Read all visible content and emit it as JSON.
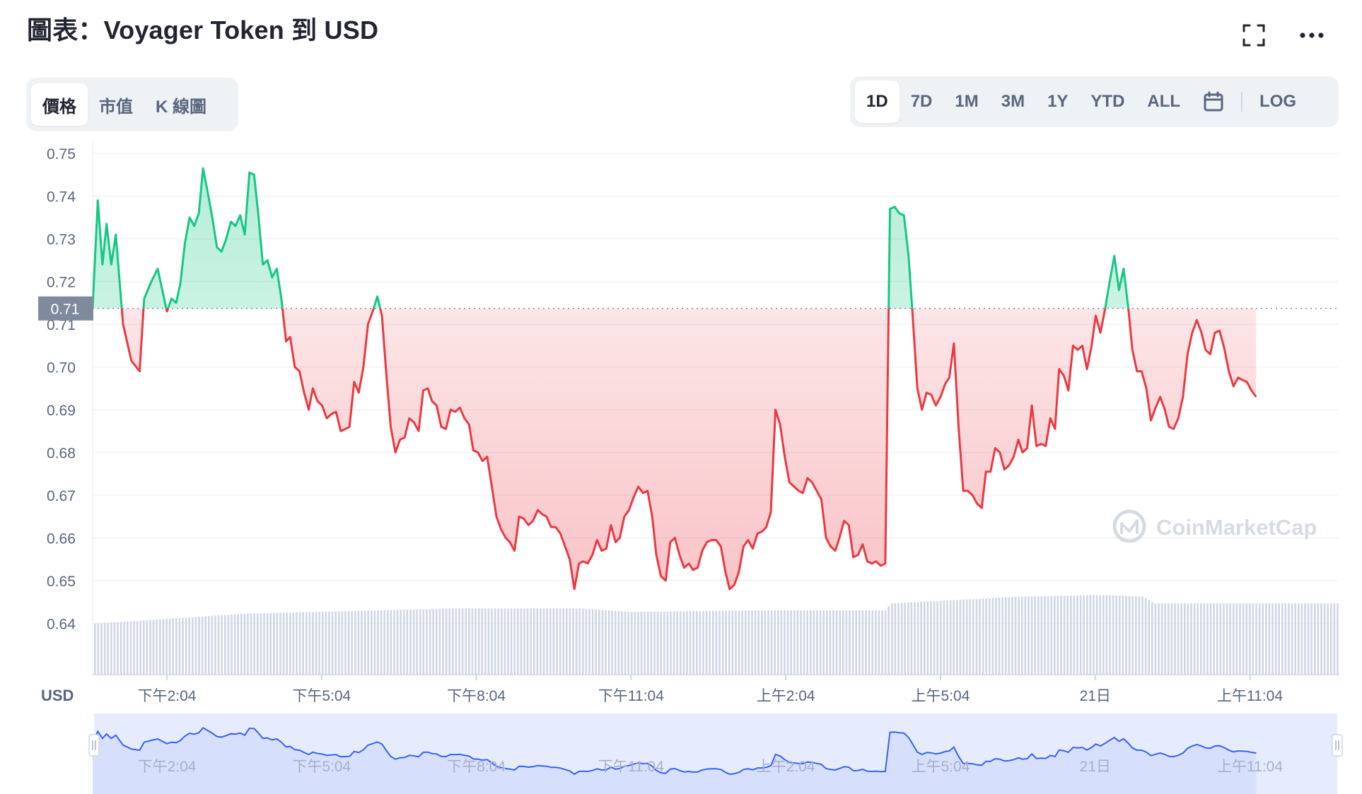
{
  "header": {
    "title": "圖表：Voyager Token 到 USD",
    "icons": [
      "fullscreen-icon",
      "more-options-icon"
    ]
  },
  "view_tabs": [
    {
      "label": "價格",
      "active": true
    },
    {
      "label": "市值",
      "active": false
    },
    {
      "label": "K 線圖",
      "active": false
    }
  ],
  "range_tabs": [
    {
      "label": "1D",
      "active": true
    },
    {
      "label": "7D",
      "active": false
    },
    {
      "label": "1M",
      "active": false
    },
    {
      "label": "3M",
      "active": false
    },
    {
      "label": "1Y",
      "active": false
    },
    {
      "label": "YTD",
      "active": false
    },
    {
      "label": "ALL",
      "active": false
    }
  ],
  "log_label": "LOG",
  "colors": {
    "up": "#16c784",
    "down": "#ea3943",
    "volume": "#cfd6e4",
    "navigator": "#3861fb",
    "baseline_label_bg": "#808a9d"
  },
  "chart_data": {
    "type": "area",
    "currency_label": "USD",
    "baseline": 0.7137,
    "baseline_label": "0.71",
    "ylim": [
      0.628,
      0.752
    ],
    "y_ticks": [
      "0.75",
      "0.74",
      "0.73",
      "0.72",
      "0.71",
      "0.70",
      "0.69",
      "0.68",
      "0.67",
      "0.66",
      "0.65",
      "0.64"
    ],
    "x_ticks": [
      "下午2:04",
      "下午5:04",
      "下午8:04",
      "下午11:04",
      "上午2:04",
      "上午5:04",
      "21日",
      "上午11:04"
    ],
    "x_tick_hours": [
      2.48,
      5.48,
      8.48,
      11.48,
      14.48,
      17.48,
      20.48,
      23.48
    ],
    "xlim_hours": [
      1.04,
      25.2
    ],
    "grid": true,
    "watermark": "CoinMarketCap",
    "series": [
      {
        "points": [
          [
            1.04,
            0.7139
          ],
          [
            1.14,
            0.739
          ],
          [
            1.23,
            0.724
          ],
          [
            1.31,
            0.7335
          ],
          [
            1.4,
            0.724
          ],
          [
            1.49,
            0.731
          ],
          [
            1.63,
            0.71
          ],
          [
            1.79,
            0.7015
          ],
          [
            1.95,
            0.699
          ],
          [
            2.04,
            0.716
          ],
          [
            2.18,
            0.72
          ],
          [
            2.3,
            0.723
          ],
          [
            2.39,
            0.718
          ],
          [
            2.48,
            0.713
          ],
          [
            2.57,
            0.716
          ],
          [
            2.66,
            0.715
          ],
          [
            2.74,
            0.7195
          ],
          [
            2.83,
            0.729
          ],
          [
            2.92,
            0.735
          ],
          [
            3.01,
            0.733
          ],
          [
            3.1,
            0.736
          ],
          [
            3.18,
            0.7465
          ],
          [
            3.27,
            0.741
          ],
          [
            3.36,
            0.735
          ],
          [
            3.45,
            0.728
          ],
          [
            3.54,
            0.727
          ],
          [
            3.63,
            0.73
          ],
          [
            3.72,
            0.734
          ],
          [
            3.81,
            0.733
          ],
          [
            3.9,
            0.7355
          ],
          [
            3.99,
            0.731
          ],
          [
            4.08,
            0.7455
          ],
          [
            4.17,
            0.745
          ],
          [
            4.25,
            0.736
          ],
          [
            4.34,
            0.724
          ],
          [
            4.43,
            0.725
          ],
          [
            4.52,
            0.721
          ],
          [
            4.61,
            0.723
          ],
          [
            4.7,
            0.716
          ],
          [
            4.79,
            0.706
          ],
          [
            4.87,
            0.707
          ],
          [
            4.96,
            0.7
          ],
          [
            5.05,
            0.699
          ],
          [
            5.14,
            0.694
          ],
          [
            5.23,
            0.69
          ],
          [
            5.31,
            0.695
          ],
          [
            5.4,
            0.692
          ],
          [
            5.49,
            0.691
          ],
          [
            5.58,
            0.688
          ],
          [
            5.67,
            0.689
          ],
          [
            5.76,
            0.6895
          ],
          [
            5.85,
            0.685
          ],
          [
            5.94,
            0.6855
          ],
          [
            6.02,
            0.686
          ],
          [
            6.11,
            0.6965
          ],
          [
            6.2,
            0.694
          ],
          [
            6.29,
            0.7
          ],
          [
            6.38,
            0.71
          ],
          [
            6.47,
            0.713
          ],
          [
            6.56,
            0.7165
          ],
          [
            6.65,
            0.712
          ],
          [
            6.73,
            0.699
          ],
          [
            6.82,
            0.686
          ],
          [
            6.91,
            0.68
          ],
          [
            7.0,
            0.683
          ],
          [
            7.09,
            0.6835
          ],
          [
            7.18,
            0.688
          ],
          [
            7.27,
            0.687
          ],
          [
            7.36,
            0.685
          ],
          [
            7.45,
            0.6945
          ],
          [
            7.54,
            0.695
          ],
          [
            7.62,
            0.692
          ],
          [
            7.71,
            0.691
          ],
          [
            7.8,
            0.686
          ],
          [
            7.89,
            0.6855
          ],
          [
            7.98,
            0.69
          ],
          [
            8.07,
            0.6895
          ],
          [
            8.16,
            0.6905
          ],
          [
            8.25,
            0.688
          ],
          [
            8.34,
            0.6865
          ],
          [
            8.42,
            0.6805
          ],
          [
            8.51,
            0.68
          ],
          [
            8.6,
            0.678
          ],
          [
            8.69,
            0.679
          ],
          [
            8.78,
            0.672
          ],
          [
            8.87,
            0.665
          ],
          [
            8.96,
            0.662
          ],
          [
            9.05,
            0.66
          ],
          [
            9.13,
            0.659
          ],
          [
            9.22,
            0.657
          ],
          [
            9.31,
            0.665
          ],
          [
            9.4,
            0.6645
          ],
          [
            9.49,
            0.663
          ],
          [
            9.58,
            0.664
          ],
          [
            9.67,
            0.6665
          ],
          [
            9.76,
            0.6655
          ],
          [
            9.84,
            0.665
          ],
          [
            9.93,
            0.6625
          ],
          [
            10.02,
            0.6625
          ],
          [
            10.11,
            0.661
          ],
          [
            10.2,
            0.658
          ],
          [
            10.29,
            0.655
          ],
          [
            10.38,
            0.648
          ],
          [
            10.47,
            0.654
          ],
          [
            10.55,
            0.6545
          ],
          [
            10.64,
            0.654
          ],
          [
            10.73,
            0.656
          ],
          [
            10.82,
            0.6595
          ],
          [
            10.91,
            0.657
          ],
          [
            11.0,
            0.6575
          ],
          [
            11.09,
            0.663
          ],
          [
            11.18,
            0.659
          ],
          [
            11.26,
            0.66
          ],
          [
            11.35,
            0.665
          ],
          [
            11.44,
            0.6665
          ],
          [
            11.53,
            0.6695
          ],
          [
            11.62,
            0.672
          ],
          [
            11.71,
            0.6705
          ],
          [
            11.8,
            0.671
          ],
          [
            11.89,
            0.665
          ],
          [
            11.97,
            0.656
          ],
          [
            12.06,
            0.651
          ],
          [
            12.15,
            0.65
          ],
          [
            12.24,
            0.659
          ],
          [
            12.33,
            0.66
          ],
          [
            12.42,
            0.656
          ],
          [
            12.51,
            0.653
          ],
          [
            12.6,
            0.654
          ],
          [
            12.68,
            0.6525
          ],
          [
            12.77,
            0.653
          ],
          [
            12.86,
            0.657
          ],
          [
            12.95,
            0.659
          ],
          [
            13.04,
            0.6595
          ],
          [
            13.13,
            0.6595
          ],
          [
            13.22,
            0.658
          ],
          [
            13.31,
            0.652
          ],
          [
            13.39,
            0.648
          ],
          [
            13.48,
            0.649
          ],
          [
            13.57,
            0.652
          ],
          [
            13.66,
            0.658
          ],
          [
            13.75,
            0.6595
          ],
          [
            13.84,
            0.6575
          ],
          [
            13.93,
            0.661
          ],
          [
            14.02,
            0.6615
          ],
          [
            14.1,
            0.6625
          ],
          [
            14.19,
            0.666
          ],
          [
            14.28,
            0.69
          ],
          [
            14.37,
            0.6865
          ],
          [
            14.46,
            0.679
          ],
          [
            14.55,
            0.673
          ],
          [
            14.64,
            0.672
          ],
          [
            14.73,
            0.671
          ],
          [
            14.81,
            0.6705
          ],
          [
            14.9,
            0.674
          ],
          [
            14.99,
            0.673
          ],
          [
            15.08,
            0.671
          ],
          [
            15.17,
            0.669
          ],
          [
            15.26,
            0.66
          ],
          [
            15.35,
            0.658
          ],
          [
            15.44,
            0.657
          ],
          [
            15.52,
            0.66
          ],
          [
            15.61,
            0.664
          ],
          [
            15.7,
            0.663
          ],
          [
            15.79,
            0.6555
          ],
          [
            15.88,
            0.656
          ],
          [
            15.97,
            0.6585
          ],
          [
            16.06,
            0.6545
          ],
          [
            16.15,
            0.654
          ],
          [
            16.23,
            0.6545
          ],
          [
            16.32,
            0.6535
          ],
          [
            16.41,
            0.654
          ],
          [
            16.5,
            0.737
          ],
          [
            16.59,
            0.7375
          ],
          [
            16.68,
            0.736
          ],
          [
            16.77,
            0.7355
          ],
          [
            16.86,
            0.726
          ],
          [
            16.94,
            0.712
          ],
          [
            17.03,
            0.695
          ],
          [
            17.12,
            0.69
          ],
          [
            17.21,
            0.694
          ],
          [
            17.3,
            0.6935
          ],
          [
            17.39,
            0.691
          ],
          [
            17.48,
            0.693
          ],
          [
            17.57,
            0.696
          ],
          [
            17.65,
            0.6975
          ],
          [
            17.74,
            0.7055
          ],
          [
            17.83,
            0.686
          ],
          [
            17.92,
            0.671
          ],
          [
            18.01,
            0.671
          ],
          [
            18.1,
            0.67
          ],
          [
            18.19,
            0.668
          ],
          [
            18.28,
            0.667
          ],
          [
            18.36,
            0.6755
          ],
          [
            18.45,
            0.6755
          ],
          [
            18.54,
            0.681
          ],
          [
            18.63,
            0.68
          ],
          [
            18.72,
            0.676
          ],
          [
            18.81,
            0.677
          ],
          [
            18.9,
            0.679
          ],
          [
            18.99,
            0.683
          ],
          [
            19.07,
            0.68
          ],
          [
            19.16,
            0.681
          ],
          [
            19.25,
            0.691
          ],
          [
            19.34,
            0.6815
          ],
          [
            19.43,
            0.682
          ],
          [
            19.52,
            0.6815
          ],
          [
            19.61,
            0.688
          ],
          [
            19.7,
            0.6855
          ],
          [
            19.78,
            0.6995
          ],
          [
            19.87,
            0.698
          ],
          [
            19.96,
            0.6945
          ],
          [
            20.05,
            0.705
          ],
          [
            20.14,
            0.704
          ],
          [
            20.23,
            0.705
          ],
          [
            20.32,
            0.6995
          ],
          [
            20.41,
            0.705
          ],
          [
            20.49,
            0.712
          ],
          [
            20.58,
            0.708
          ],
          [
            20.67,
            0.7135
          ],
          [
            20.76,
            0.72
          ],
          [
            20.85,
            0.726
          ],
          [
            20.94,
            0.718
          ],
          [
            21.03,
            0.723
          ],
          [
            21.12,
            0.714
          ],
          [
            21.2,
            0.704
          ],
          [
            21.29,
            0.699
          ],
          [
            21.38,
            0.699
          ],
          [
            21.47,
            0.695
          ],
          [
            21.56,
            0.6875
          ],
          [
            21.65,
            0.6905
          ],
          [
            21.74,
            0.693
          ],
          [
            21.83,
            0.69
          ],
          [
            21.91,
            0.686
          ],
          [
            22.0,
            0.6855
          ],
          [
            22.09,
            0.688
          ],
          [
            22.18,
            0.693
          ],
          [
            22.27,
            0.703
          ],
          [
            22.36,
            0.708
          ],
          [
            22.45,
            0.711
          ],
          [
            22.54,
            0.708
          ],
          [
            22.62,
            0.704
          ],
          [
            22.71,
            0.703
          ],
          [
            22.8,
            0.708
          ],
          [
            22.89,
            0.7085
          ],
          [
            22.98,
            0.7045
          ],
          [
            23.07,
            0.699
          ],
          [
            23.16,
            0.6955
          ],
          [
            23.25,
            0.6975
          ],
          [
            23.33,
            0.697
          ],
          [
            23.42,
            0.6965
          ],
          [
            23.51,
            0.6945
          ],
          [
            23.6,
            0.693
          ]
        ]
      }
    ],
    "volume_profile": [
      [
        1.04,
        0.3
      ],
      [
        4.0,
        0.36
      ],
      [
        8.0,
        0.39
      ],
      [
        10.5,
        0.39
      ],
      [
        11.5,
        0.37
      ],
      [
        14.0,
        0.38
      ],
      [
        16.4,
        0.38
      ],
      [
        16.5,
        0.42
      ],
      [
        19.0,
        0.46
      ],
      [
        20.6,
        0.47
      ],
      [
        21.4,
        0.46
      ],
      [
        21.6,
        0.42
      ],
      [
        25.2,
        0.42
      ]
    ]
  },
  "navigator": {
    "x_ticks": [
      "下午2:04",
      "下午5:04",
      "下午8:04",
      "下午11:04",
      "上午2:04",
      "上午5:04",
      "21日",
      "上午11:04"
    ]
  }
}
